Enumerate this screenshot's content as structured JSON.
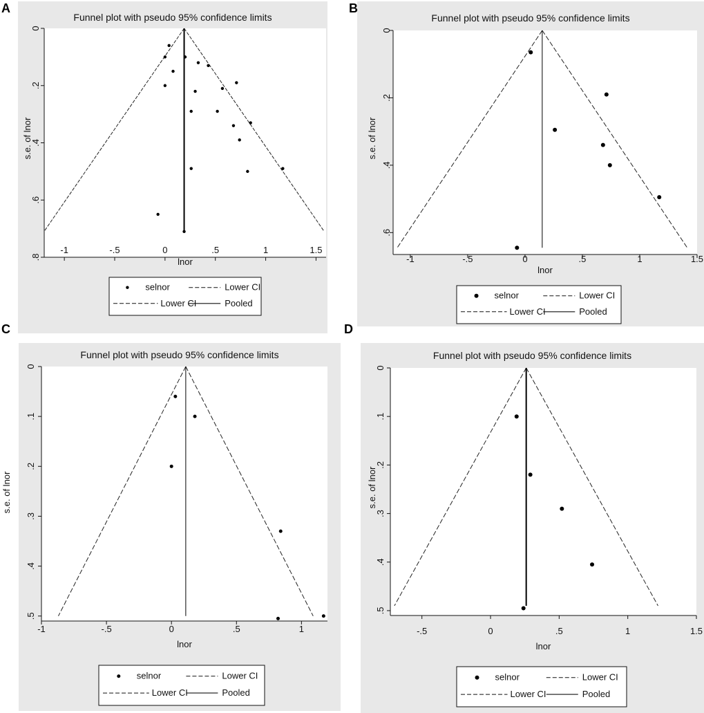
{
  "panel_letters": [
    "A",
    "B",
    "C",
    "D"
  ],
  "chart_data": [
    {
      "type": "scatter",
      "panel": "A",
      "title": "Funnel plot with pseudo 95% confidence limits",
      "xlabel": "lnor",
      "ylabel": "s.e. of lnor",
      "xlim": [
        -1.2,
        1.6
      ],
      "ylim": [
        0.8,
        0
      ],
      "xticks": [
        -1,
        -0.5,
        0,
        0.5,
        1,
        1.5
      ],
      "xtick_labels": [
        "-1",
        "-.5",
        "0",
        ".5",
        "1",
        "1.5"
      ],
      "yticks": [
        0,
        0.2,
        0.4,
        0.6,
        0.8
      ],
      "ytick_labels": [
        "0",
        ".2",
        ".4",
        ".6",
        ".8"
      ],
      "pooled": 0.19,
      "ci_max_se": 0.71,
      "legend": [
        "selnor",
        "Lower CI",
        "Lower CI",
        "Pooled"
      ],
      "legend_placement": "bottom",
      "series": [
        {
          "name": "selnor",
          "x": [
            0.04,
            0.0,
            0.08,
            0.2,
            0.33,
            0.43,
            0.71,
            0.0,
            0.57,
            0.3,
            0.26,
            0.52,
            0.85,
            0.68,
            0.74,
            1.17,
            0.26,
            0.82,
            -0.07,
            0.19
          ],
          "y": [
            0.06,
            0.1,
            0.15,
            0.1,
            0.12,
            0.13,
            0.19,
            0.2,
            0.21,
            0.22,
            0.29,
            0.29,
            0.33,
            0.34,
            0.39,
            0.49,
            0.49,
            0.5,
            0.65,
            0.71
          ]
        }
      ]
    },
    {
      "type": "scatter",
      "panel": "B",
      "title": "Funnel plot with pseudo 95% confidence limits",
      "xlabel": "lnor",
      "ylabel": "s.e. of lnor",
      "xlim": [
        -1.15,
        1.5
      ],
      "ylim": [
        0.665,
        0
      ],
      "xticks": [
        -1,
        -0.5,
        0,
        0.5,
        1,
        1.5
      ],
      "xtick_labels": [
        "-1",
        "-.5",
        "0",
        ".5",
        "1",
        "1.5"
      ],
      "yticks": [
        0,
        0.2,
        0.4,
        0.6
      ],
      "ytick_labels": [
        "0",
        ".2",
        ".4",
        ".6"
      ],
      "pooled": 0.15,
      "ci_max_se": 0.645,
      "legend": [
        "selnor",
        "Lower CI",
        "Lower CI",
        "Pooled"
      ],
      "legend_placement": "bottom",
      "series": [
        {
          "name": "selnor",
          "x": [
            0.05,
            0.71,
            0.26,
            0.68,
            0.74,
            1.17,
            -0.07
          ],
          "y": [
            0.065,
            0.19,
            0.295,
            0.34,
            0.4,
            0.495,
            0.645
          ]
        }
      ]
    },
    {
      "type": "scatter",
      "panel": "C",
      "title": "Funnel plot with pseudo 95% confidence limits",
      "xlabel": "lnor",
      "ylabel": "s.e. of lnor",
      "xlim": [
        -1,
        1.2
      ],
      "ylim": [
        0.51,
        0
      ],
      "xticks": [
        -1,
        -0.5,
        0,
        0.5,
        1
      ],
      "xtick_labels": [
        "-1",
        "-.5",
        "0",
        ".5",
        "1"
      ],
      "yticks": [
        0,
        0.1,
        0.2,
        0.3,
        0.4,
        0.5
      ],
      "ytick_labels": [
        "0",
        ".1",
        ".2",
        ".3",
        ".4",
        ".5"
      ],
      "pooled": 0.11,
      "ci_max_se": 0.5,
      "legend": [
        "selnor",
        "Lower CI",
        "Lower CI",
        "Pooled"
      ],
      "legend_placement": "bottom",
      "series": [
        {
          "name": "selnor",
          "x": [
            0.03,
            0.18,
            0.0,
            0.84,
            0.82,
            1.17
          ],
          "y": [
            0.06,
            0.1,
            0.2,
            0.33,
            0.505,
            0.5
          ]
        }
      ]
    },
    {
      "type": "scatter",
      "panel": "D",
      "title": "Funnel plot with pseudo 95% confidence limits",
      "xlabel": "lnor",
      "ylabel": "s.e. of lnor",
      "xlim": [
        -0.73,
        1.5
      ],
      "ylim": [
        0.51,
        0
      ],
      "xticks": [
        -0.5,
        0,
        0.5,
        1,
        1.5
      ],
      "xtick_labels": [
        "-.5",
        "0",
        ".5",
        "1",
        "1.5"
      ],
      "yticks": [
        0,
        0.1,
        0.2,
        0.3,
        0.4,
        0.5
      ],
      "ytick_labels": [
        "0",
        ".1",
        ".2",
        ".3",
        ".4",
        ".5"
      ],
      "pooled": 0.26,
      "ci_max_se": 0.49,
      "legend": [
        "selnor",
        "Lower CI",
        "Lower CI",
        "Pooled"
      ],
      "legend_placement": "bottom",
      "series": [
        {
          "name": "selnor",
          "x": [
            0.19,
            0.29,
            0.52,
            0.74,
            0.24
          ],
          "y": [
            0.1,
            0.22,
            0.29,
            0.405,
            0.495
          ]
        }
      ]
    }
  ]
}
